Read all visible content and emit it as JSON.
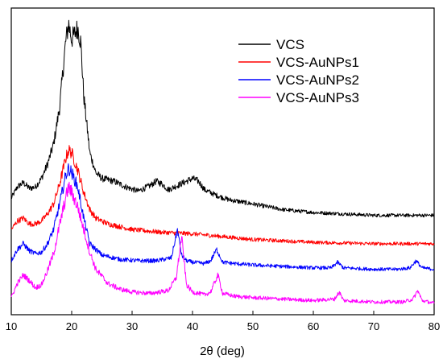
{
  "chart_data": {
    "type": "line",
    "title": "",
    "xlabel": "2θ (deg)",
    "ylabel": "",
    "xlim": [
      10,
      80
    ],
    "xticks": [
      10,
      20,
      30,
      40,
      50,
      60,
      70,
      80
    ],
    "y_tick_labels_shown": false,
    "grid": false,
    "legend_position": "top-right",
    "series": [
      {
        "name": "VCS",
        "color": "#000000",
        "baseline": 0.62,
        "x": [
          10,
          11,
          12,
          13,
          14,
          15,
          16,
          17,
          18,
          19,
          19.5,
          20,
          20.5,
          21,
          21.5,
          22,
          23,
          24,
          25,
          27,
          29,
          31,
          33,
          34,
          35,
          36,
          38,
          40,
          41,
          42,
          44,
          46,
          50,
          55,
          60,
          65,
          70,
          75,
          80
        ],
        "values": [
          0.74,
          0.82,
          0.85,
          0.81,
          0.82,
          0.88,
          0.98,
          1.12,
          1.38,
          1.84,
          1.97,
          1.86,
          1.9,
          1.94,
          1.84,
          1.46,
          1.06,
          0.92,
          0.88,
          0.86,
          0.82,
          0.79,
          0.83,
          0.86,
          0.84,
          0.8,
          0.84,
          0.88,
          0.86,
          0.8,
          0.76,
          0.73,
          0.7,
          0.66,
          0.64,
          0.63,
          0.62,
          0.62,
          0.62
        ]
      },
      {
        "name": "VCS-AuNPs1",
        "color": "#ff0000",
        "baseline": 0.42,
        "x": [
          10,
          11,
          12,
          13,
          14,
          15,
          16,
          17,
          18,
          19,
          19.5,
          20,
          21,
          22,
          23,
          24,
          26,
          30,
          35,
          40,
          45,
          50,
          60,
          70,
          80
        ],
        "values": [
          0.52,
          0.58,
          0.6,
          0.56,
          0.56,
          0.58,
          0.63,
          0.7,
          0.84,
          1.02,
          1.08,
          1.06,
          0.94,
          0.78,
          0.66,
          0.6,
          0.56,
          0.52,
          0.5,
          0.49,
          0.47,
          0.45,
          0.43,
          0.42,
          0.42
        ]
      },
      {
        "name": "VCS-AuNPs2",
        "color": "#0000ff",
        "baseline": 0.24,
        "x": [
          10,
          11,
          12,
          13,
          14,
          15,
          16,
          17,
          18,
          19,
          19.5,
          20,
          21,
          22,
          23,
          25,
          28,
          31,
          34,
          36.5,
          37.5,
          38.2,
          39,
          40,
          42,
          43,
          44,
          45,
          47,
          50,
          55,
          60,
          63,
          64,
          65,
          70,
          74,
          76,
          77,
          78,
          80
        ],
        "values": [
          0.3,
          0.38,
          0.42,
          0.37,
          0.35,
          0.36,
          0.42,
          0.52,
          0.7,
          0.9,
          0.95,
          0.92,
          0.82,
          0.6,
          0.42,
          0.34,
          0.31,
          0.3,
          0.3,
          0.32,
          0.52,
          0.34,
          0.3,
          0.29,
          0.28,
          0.3,
          0.38,
          0.29,
          0.28,
          0.27,
          0.26,
          0.25,
          0.25,
          0.29,
          0.25,
          0.24,
          0.24,
          0.25,
          0.3,
          0.25,
          0.24
        ]
      },
      {
        "name": "VCS-AuNPs3",
        "color": "#ff00ff",
        "baseline": 0.0,
        "x": [
          10,
          11,
          12,
          13,
          14,
          15,
          16,
          17,
          18,
          19,
          19.5,
          20,
          21,
          22,
          23,
          24,
          26,
          28,
          30,
          33,
          36,
          37.3,
          38.2,
          39,
          40,
          42,
          43,
          44.2,
          45,
          47,
          50,
          55,
          60,
          63.5,
          64.3,
          65,
          70,
          75,
          76.5,
          77.3,
          78,
          80
        ],
        "values": [
          0.04,
          0.14,
          0.2,
          0.16,
          0.11,
          0.13,
          0.23,
          0.35,
          0.55,
          0.74,
          0.82,
          0.78,
          0.68,
          0.52,
          0.36,
          0.24,
          0.14,
          0.1,
          0.08,
          0.07,
          0.09,
          0.18,
          0.47,
          0.13,
          0.08,
          0.06,
          0.08,
          0.2,
          0.07,
          0.05,
          0.04,
          0.03,
          0.02,
          0.03,
          0.08,
          0.02,
          0.01,
          0.01,
          0.03,
          0.09,
          0.02,
          0.0
        ]
      }
    ]
  }
}
